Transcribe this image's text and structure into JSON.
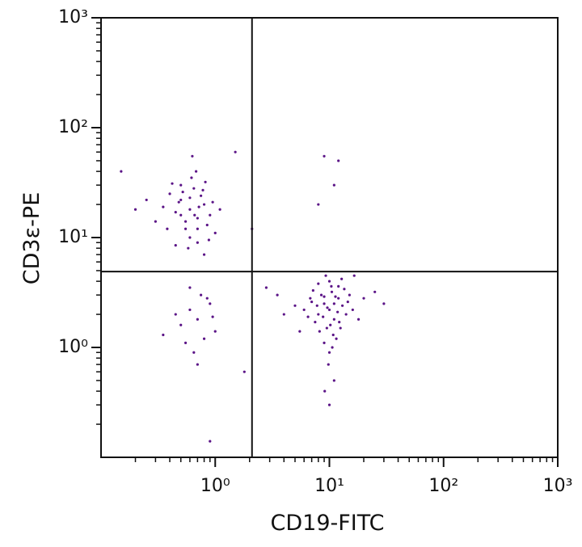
{
  "chart_data": {
    "type": "scatter",
    "x_label": "CD19-FITC",
    "y_label": "CD3ε-PE",
    "log_x": true,
    "log_y": true,
    "color": "#5b1487",
    "xlim": [
      0.1,
      1000
    ],
    "ylim": [
      0.1,
      1000
    ],
    "xticks": [
      {
        "value": 1,
        "label": "10⁰"
      },
      {
        "value": 10,
        "label": "10¹"
      },
      {
        "value": 100,
        "label": "10²"
      },
      {
        "value": 1000,
        "label": "10³"
      }
    ],
    "yticks": [
      {
        "value": 1,
        "label": "10⁰"
      },
      {
        "value": 10,
        "label": "10¹"
      },
      {
        "value": 100,
        "label": "10²"
      },
      {
        "value": 1000,
        "label": "10³"
      }
    ],
    "xminorticks": [
      0.2,
      0.3,
      0.4,
      0.5,
      0.6,
      0.7,
      0.8,
      0.9,
      2,
      3,
      4,
      5,
      6,
      7,
      8,
      9,
      20,
      30,
      40,
      50,
      60,
      70,
      80,
      90,
      200,
      300,
      400,
      500,
      600,
      700,
      800,
      900
    ],
    "yminorticks": [
      0.2,
      0.3,
      0.4,
      0.5,
      0.6,
      0.7,
      0.8,
      0.9,
      2,
      3,
      4,
      5,
      6,
      7,
      8,
      9,
      20,
      30,
      40,
      50,
      60,
      70,
      80,
      90,
      200,
      300,
      400,
      500,
      600,
      700,
      800,
      900
    ],
    "gates": {
      "x": 2.1,
      "y": 4.9
    },
    "x": [
      0.6,
      0.5,
      0.7,
      0.8,
      0.4,
      0.55,
      0.65,
      0.9,
      0.45,
      0.75,
      0.6,
      0.35,
      0.85,
      0.5,
      0.7,
      0.95,
      0.3,
      0.62,
      0.58,
      0.72,
      0.48,
      0.66,
      0.52,
      1.0,
      0.42,
      0.8,
      0.25,
      0.68,
      0.55,
      1.1,
      0.38,
      0.78,
      0.6,
      0.88,
      0.2,
      0.63,
      0.45,
      0.7,
      0.5,
      0.82,
      0.7,
      0.6,
      0.8,
      0.5,
      0.9,
      0.65,
      0.75,
      0.45,
      1.0,
      0.55,
      0.85,
      0.35,
      0.7,
      0.6,
      0.95,
      10,
      9,
      11,
      12,
      8,
      10.5,
      9.5,
      13,
      7,
      11.5,
      10,
      8.5,
      14,
      6,
      9,
      12,
      10,
      11,
      7.5,
      15,
      9.8,
      5,
      16,
      10.2,
      8,
      12.5,
      6.5,
      11,
      9,
      13.5,
      4,
      20,
      10.8,
      8.8,
      11.8,
      7.2,
      9.3,
      12.8,
      5.5,
      10,
      25,
      18,
      9.6,
      11.3,
      8.2,
      14.5,
      6.8,
      10.6,
      3.5,
      30,
      9.1,
      12.2,
      7.8,
      10.4,
      16.5,
      9,
      12,
      8,
      11,
      1.5,
      2.1,
      0.15,
      0.9,
      2.8,
      1.8
    ],
    "values": [
      18,
      22,
      15,
      20,
      25,
      12,
      28,
      16,
      17,
      24,
      10,
      19,
      13,
      30,
      9,
      21,
      14,
      35,
      8,
      19,
      21,
      16,
      26,
      11,
      31,
      7,
      22,
      40,
      14,
      18,
      12,
      27,
      23,
      9.5,
      18,
      55,
      8.5,
      12,
      16,
      32,
      1.8,
      2.2,
      1.2,
      1.6,
      2.5,
      0.9,
      3.0,
      2.0,
      1.4,
      1.1,
      2.8,
      1.3,
      0.7,
      3.5,
      1.9,
      2.2,
      2.5,
      1.8,
      2.8,
      2.0,
      3.2,
      1.5,
      2.4,
      2.6,
      1.2,
      0.9,
      3.0,
      2.0,
      2.2,
      1.1,
      3.6,
      4.0,
      2.5,
      1.7,
      3.0,
      0.7,
      2.4,
      2.2,
      1.6,
      3.8,
      1.5,
      1.9,
      0.5,
      2.9,
      3.4,
      2.0,
      2.8,
      1.3,
      1.9,
      2.1,
      3.3,
      4.5,
      4.2,
      1.4,
      0.3,
      3.2,
      1.8,
      2.3,
      2.9,
      1.4,
      2.6,
      2.8,
      1.0,
      3.0,
      2.5,
      0.4,
      1.7,
      2.4,
      3.6,
      4.5,
      55,
      50,
      20,
      30,
      60,
      12,
      40,
      0.14,
      3.5,
      0.6
    ]
  }
}
